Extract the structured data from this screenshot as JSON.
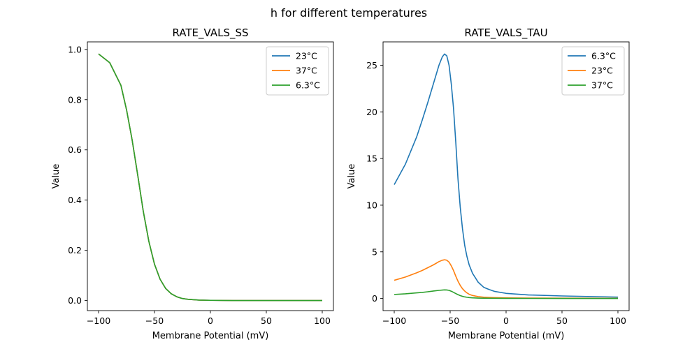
{
  "figure": {
    "suptitle": "h for different temperatures"
  },
  "chart_data": [
    {
      "type": "line",
      "title": "RATE_VALS_SS",
      "xlabel": "Membrane Potential (mV)",
      "ylabel": "Value",
      "xlim": [
        -110,
        110
      ],
      "ylim": [
        -0.04,
        1.03
      ],
      "xticks": [
        -100,
        -50,
        0,
        50,
        100
      ],
      "xtick_labels": [
        "−100",
        "−50",
        "0",
        "50",
        "100"
      ],
      "yticks": [
        0.0,
        0.2,
        0.4,
        0.6,
        0.8,
        1.0
      ],
      "ytick_labels": [
        "0.0",
        "0.2",
        "0.4",
        "0.6",
        "0.8",
        "1.0"
      ],
      "grid": false,
      "legend_position": "top-right",
      "x": [
        -100,
        -90,
        -80,
        -75,
        -70,
        -65,
        -60,
        -55,
        -50,
        -45,
        -40,
        -35,
        -30,
        -25,
        -20,
        -10,
        0,
        20,
        50,
        100
      ],
      "series": [
        {
          "name": "23°C",
          "color": "#1f77b4",
          "values": [
            0.982,
            0.947,
            0.857,
            0.76,
            0.64,
            0.5,
            0.355,
            0.235,
            0.145,
            0.085,
            0.048,
            0.027,
            0.015,
            0.008,
            0.005,
            0.002,
            0.001,
            0.0,
            0.0,
            0.0
          ]
        },
        {
          "name": "37°C",
          "color": "#ff7f0e",
          "values": [
            0.982,
            0.947,
            0.857,
            0.76,
            0.64,
            0.5,
            0.355,
            0.235,
            0.145,
            0.085,
            0.048,
            0.027,
            0.015,
            0.008,
            0.005,
            0.002,
            0.001,
            0.0,
            0.0,
            0.0
          ]
        },
        {
          "name": "6.3°C",
          "color": "#2ca02c",
          "values": [
            0.982,
            0.947,
            0.857,
            0.76,
            0.64,
            0.5,
            0.355,
            0.235,
            0.145,
            0.085,
            0.048,
            0.027,
            0.015,
            0.008,
            0.005,
            0.002,
            0.001,
            0.0,
            0.0,
            0.0
          ]
        }
      ]
    },
    {
      "type": "line",
      "title": "RATE_VALS_TAU",
      "xlabel": "Membrane Potential (mV)",
      "ylabel": "Value",
      "xlim": [
        -110,
        110
      ],
      "ylim": [
        -1.3,
        27.5
      ],
      "xticks": [
        -100,
        -50,
        0,
        50,
        100
      ],
      "xtick_labels": [
        "−100",
        "−50",
        "0",
        "50",
        "100"
      ],
      "yticks": [
        0,
        5,
        10,
        15,
        20,
        25
      ],
      "ytick_labels": [
        "0",
        "5",
        "10",
        "15",
        "20",
        "25"
      ],
      "grid": false,
      "legend_position": "top-right",
      "x": [
        -100,
        -90,
        -80,
        -75,
        -70,
        -65,
        -60,
        -57,
        -55,
        -53,
        -51,
        -49,
        -47,
        -45,
        -43,
        -41,
        -39,
        -37,
        -35,
        -33,
        -30,
        -25,
        -20,
        -15,
        -10,
        0,
        20,
        50,
        100
      ],
      "series": [
        {
          "name": "6.3°C",
          "color": "#1f77b4",
          "values": [
            12.2,
            14.4,
            17.3,
            19.1,
            21.0,
            23.0,
            25.0,
            25.9,
            26.2,
            26.0,
            25.0,
            23.0,
            20.4,
            16.8,
            12.8,
            9.8,
            7.5,
            5.7,
            4.5,
            3.6,
            2.7,
            1.75,
            1.2,
            0.95,
            0.75,
            0.55,
            0.38,
            0.27,
            0.15
          ]
        },
        {
          "name": "23°C",
          "color": "#ff7f0e",
          "values": [
            1.95,
            2.3,
            2.75,
            3.0,
            3.3,
            3.6,
            3.95,
            4.1,
            4.15,
            4.1,
            3.9,
            3.5,
            3.0,
            2.4,
            1.85,
            1.4,
            1.05,
            0.8,
            0.6,
            0.45,
            0.32,
            0.2,
            0.14,
            0.11,
            0.09,
            0.06,
            0.04,
            0.03,
            0.02
          ]
        },
        {
          "name": "37°C",
          "color": "#2ca02c",
          "values": [
            0.43,
            0.5,
            0.6,
            0.65,
            0.72,
            0.8,
            0.87,
            0.9,
            0.92,
            0.91,
            0.87,
            0.78,
            0.66,
            0.53,
            0.41,
            0.31,
            0.23,
            0.17,
            0.13,
            0.1,
            0.07,
            0.045,
            0.03,
            0.024,
            0.02,
            0.014,
            0.01,
            0.007,
            0.004
          ]
        }
      ]
    }
  ]
}
